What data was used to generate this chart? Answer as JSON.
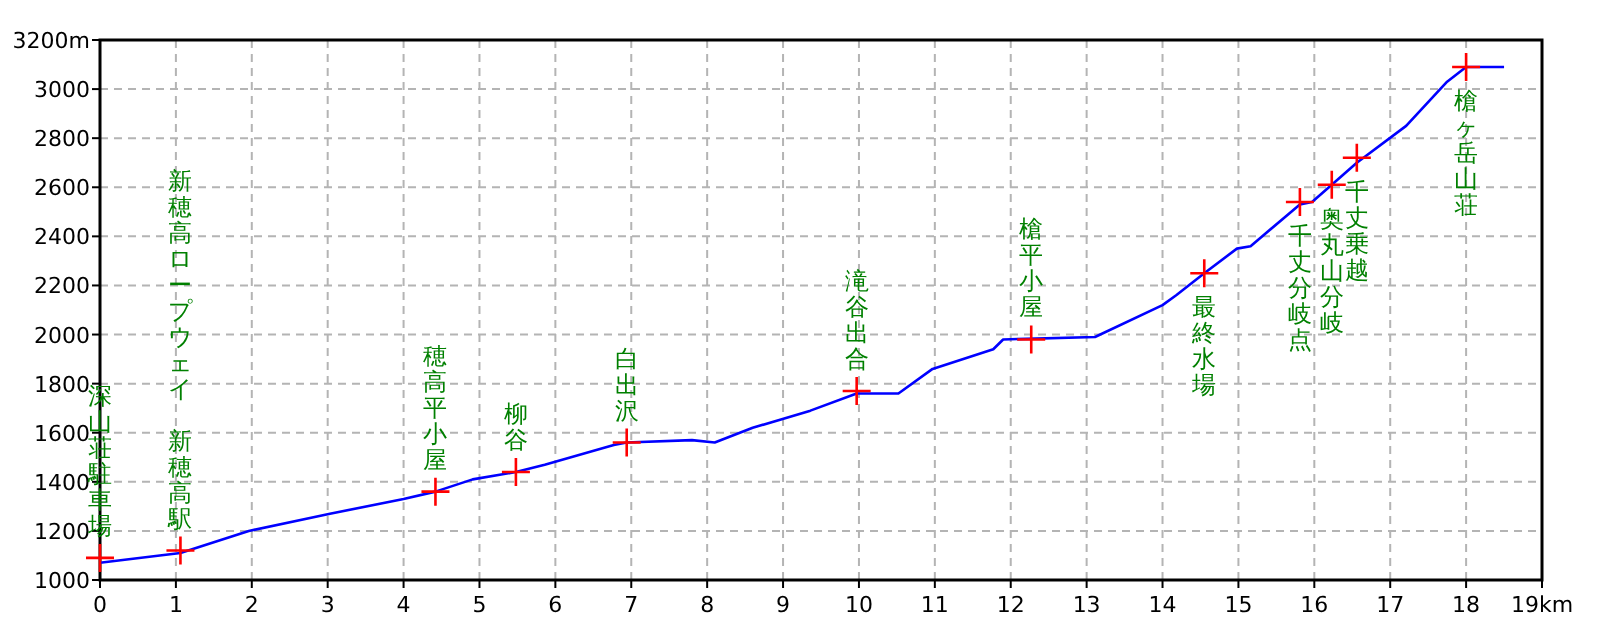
{
  "chart_data": {
    "type": "line",
    "xlim": [
      0,
      19
    ],
    "ylim": [
      1000,
      3200
    ],
    "xticks": [
      0,
      1,
      2,
      3,
      4,
      5,
      6,
      7,
      8,
      9,
      10,
      11,
      12,
      13,
      14,
      15,
      16,
      17,
      18,
      {
        "value": 19,
        "label": "19km"
      }
    ],
    "yticks": [
      1000,
      1200,
      1400,
      1600,
      1800,
      2000,
      2200,
      2400,
      2600,
      2800,
      3000,
      {
        "value": 3200,
        "label": "3200m"
      }
    ],
    "grid": true,
    "series": [
      {
        "color": "#0000ff",
        "marker": "none",
        "line_style": "solid",
        "x": [
          0,
          1.06,
          1.96,
          3.03,
          4.0,
          4.42,
          4.91,
          5.48,
          5.86,
          6.77,
          6.94,
          7.8,
          8.1,
          8.6,
          9.36,
          9.97,
          10.34,
          10.52,
          10.97,
          11.77,
          11.9,
          13.11,
          14.0,
          14.18,
          14.55,
          14.98,
          15.16,
          15.81,
          15.97,
          16.23,
          16.56,
          17.21,
          17.75,
          18.0,
          18.5
        ],
        "values": [
          1070,
          1110,
          1200,
          1270,
          1330,
          1360,
          1410,
          1440,
          1470,
          1550,
          1560,
          1570,
          1560,
          1620,
          1690,
          1760,
          1760,
          1760,
          1860,
          1940,
          1980,
          1990,
          2120,
          2160,
          2250,
          2350,
          2360,
          2530,
          2540,
          2610,
          2700,
          2850,
          3030,
          3090,
          3090
        ]
      },
      {
        "type": "scatter",
        "color": "#ff0000",
        "marker": "cross",
        "x": [
          0,
          1.06,
          4.42,
          5.48,
          6.94,
          9.97,
          12.27,
          14.55,
          15.81,
          16.23,
          16.56,
          18.0
        ],
        "values": [
          1090,
          1120,
          1360,
          1440,
          1560,
          1770,
          1980,
          2250,
          2540,
          2610,
          2720,
          3090
        ]
      }
    ],
    "annotations": [
      {
        "text": "深山荘駐車場",
        "x": 0,
        "y": 1090
      },
      {
        "text": "新穂高駅",
        "x": 1.06,
        "y": 1120
      },
      "新穂高ロープウェイ",
      {
        "text": "穂高平小屋",
        "x": 4.42,
        "y": 1360
      },
      {
        "text": "柳谷",
        "x": 5.48,
        "y": 1440
      },
      {
        "text": "白出沢",
        "x": 6.94,
        "y": 1560
      },
      {
        "text": "滝谷出合",
        "x": 9.97,
        "y": 1770
      },
      {
        "text": "槍平小屋",
        "x": 12.27,
        "y": 1980
      },
      {
        "text": "最終水場",
        "x": 14.55,
        "y": 2250
      },
      {
        "text": "千丈分岐点",
        "x": 15.81,
        "y": 2540
      },
      {
        "text": "奥丸山分岐",
        "x": 16.23,
        "y": 2610
      },
      {
        "text": "千丈乗越",
        "x": 16.56,
        "y": 2720
      },
      {
        "text": "槍ヶ岳山荘",
        "x": 18.0,
        "y": 3090
      }
    ]
  }
}
